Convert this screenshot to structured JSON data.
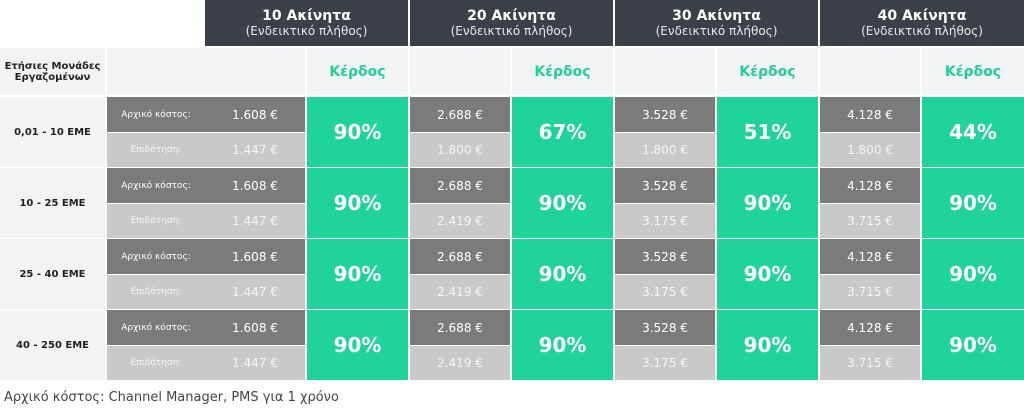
{
  "header": {
    "columns": [
      {
        "title": "10 Ακίνητα",
        "subtitle": "(Ενδεικτικό πλήθος)"
      },
      {
        "title": "20 Ακίνητα",
        "subtitle": "(Ενδεικτικό πλήθος)"
      },
      {
        "title": "30 Ακίνητα",
        "subtitle": "(Ενδεικτικό πλήθος)"
      },
      {
        "title": "40 Ακίνητα",
        "subtitle": "(Ενδεικτικό πλήθος)"
      }
    ]
  },
  "row_header_label": "Ετήσιες Μονάδες Εργαζομένων",
  "profit_label": "Κέρδος",
  "cost_label": "Αρχικό κόστος:",
  "subsidy_label": "Επιδότηση:",
  "rows": [
    {
      "label": "0,01 - 10 ΕΜΕ",
      "cells": [
        {
          "cost": "1.608 €",
          "subsidy": "1.447 €",
          "profit": "90%"
        },
        {
          "cost": "2.688 €",
          "subsidy": "1.800 €",
          "profit": "67%"
        },
        {
          "cost": "3.528 €",
          "subsidy": "1.800 €",
          "profit": "51%"
        },
        {
          "cost": "4.128 €",
          "subsidy": "1.800 €",
          "profit": "44%"
        }
      ]
    },
    {
      "label": "10 - 25 ΕΜΕ",
      "cells": [
        {
          "cost": "1.608 €",
          "subsidy": "1.447 €",
          "profit": "90%"
        },
        {
          "cost": "2.688 €",
          "subsidy": "2.419 €",
          "profit": "90%"
        },
        {
          "cost": "3.528 €",
          "subsidy": "3.175 €",
          "profit": "90%"
        },
        {
          "cost": "4.128 €",
          "subsidy": "3.715 €",
          "profit": "90%"
        }
      ]
    },
    {
      "label": "25 - 40 ΕΜΕ",
      "cells": [
        {
          "cost": "1.608 €",
          "subsidy": "1.447 €",
          "profit": "90%"
        },
        {
          "cost": "2.688 €",
          "subsidy": "2.419 €",
          "profit": "90%"
        },
        {
          "cost": "3.528 €",
          "subsidy": "3.175 €",
          "profit": "90%"
        },
        {
          "cost": "4.128 €",
          "subsidy": "3.715 €",
          "profit": "90%"
        }
      ]
    },
    {
      "label": "40 - 250 ΕΜΕ",
      "cells": [
        {
          "cost": "1.608 €",
          "subsidy": "1.447 €",
          "profit": "90%"
        },
        {
          "cost": "2.688 €",
          "subsidy": "2.419 €",
          "profit": "90%"
        },
        {
          "cost": "3.528 €",
          "subsidy": "3.175 €",
          "profit": "90%"
        },
        {
          "cost": "4.128 €",
          "subsidy": "3.715 €",
          "profit": "90%"
        }
      ]
    }
  ],
  "footnote": "Αρχικό κόστος: Channel Manager, PMS για 1 χρόνο"
}
